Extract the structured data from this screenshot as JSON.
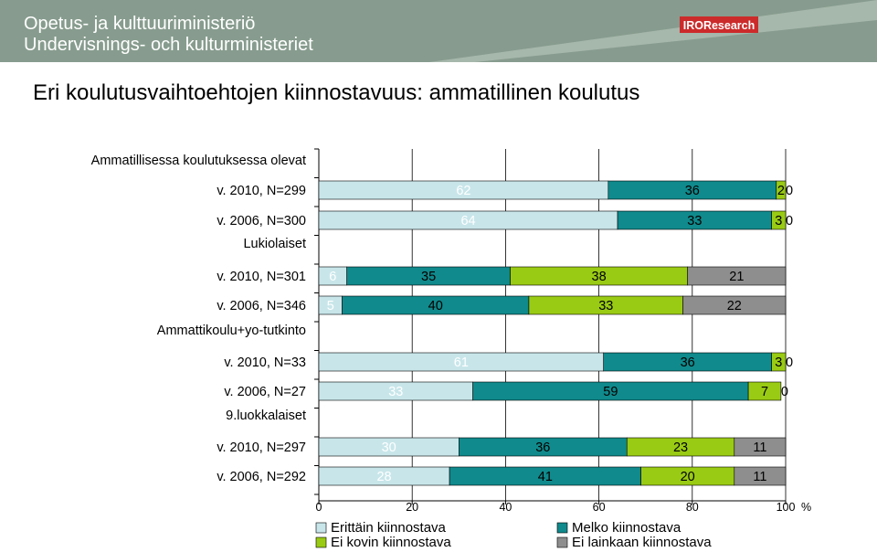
{
  "header": {
    "ministry_fi": "Opetus- ja kulttuuriministeriö",
    "ministry_sv": "Undervisnings- och kulturministeriet",
    "logo": "IRОResearch"
  },
  "title": "Eri koulutusvaihtoehtojen kiinnostavuus: ammatillinen koulutus",
  "colors": {
    "header_bg": "#879c8e",
    "series": [
      "#c8e6ea",
      "#108a8c",
      "#9acb14",
      "#8e8e8e"
    ],
    "logo_bg": "#cc2b2b"
  },
  "chart_data": {
    "type": "bar",
    "orientation": "horizontal",
    "stacked": true,
    "groups": [
      {
        "label": "Ammatillisessa koulutuksessa olevat",
        "rows": [
          0,
          1
        ]
      },
      {
        "label": "Lukiolaiset",
        "rows": [
          2,
          3
        ]
      },
      {
        "label": "Ammattikoulu+yo-tutkinto",
        "rows": [
          4,
          5
        ]
      },
      {
        "label": "9.luokkalaiset",
        "rows": [
          6,
          7
        ]
      }
    ],
    "categories": [
      "v. 2010, N=299",
      "v. 2006, N=300",
      "v. 2010, N=301",
      "v. 2006, N=346",
      "v. 2010, N=33",
      "v. 2006, N=27",
      "v. 2010, N=297",
      "v. 2006, N=292"
    ],
    "series": [
      {
        "name": "Erittäin kiinnostava",
        "values": [
          62,
          64,
          6,
          5,
          61,
          33,
          30,
          28
        ]
      },
      {
        "name": "Melko kiinnostava",
        "values": [
          36,
          33,
          35,
          40,
          36,
          59,
          36,
          41
        ]
      },
      {
        "name": "Ei kovin kiinnostava",
        "values": [
          2,
          3,
          38,
          33,
          3,
          7,
          23,
          20
        ]
      },
      {
        "name": "Ei lainkaan kiinnostava",
        "values": [
          0,
          0,
          21,
          22,
          0,
          0,
          11,
          11
        ]
      }
    ],
    "xlim": [
      0,
      100
    ],
    "xticks": [
      0,
      20,
      40,
      60,
      80,
      100
    ],
    "xunit": "%",
    "grid": true,
    "legend_position": "bottom"
  }
}
